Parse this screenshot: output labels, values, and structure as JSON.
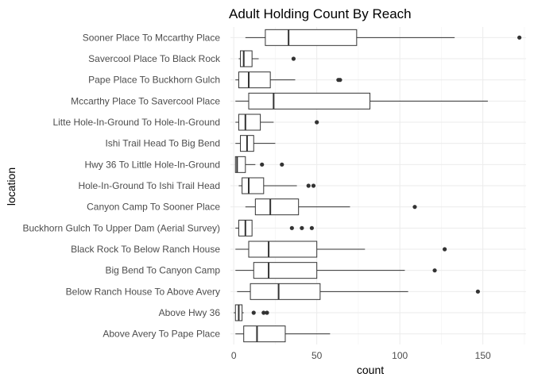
{
  "chart_data": {
    "type": "boxplot",
    "orientation": "horizontal",
    "title": "Adult Holding Count By Reach",
    "xlabel": "count",
    "ylabel": "location",
    "xlim": [
      -2,
      176
    ],
    "xticks": [
      0,
      50,
      100,
      150
    ],
    "grid": true,
    "series": [
      {
        "name": "Sooner Place To Mccarthy Place",
        "min": 7,
        "q1": 19,
        "median": 33,
        "q3": 74,
        "max": 133,
        "outliers": [
          172
        ]
      },
      {
        "name": "Savercool Place  To Black Rock",
        "min": 3,
        "q1": 4,
        "median": 6,
        "q3": 11,
        "max": 15,
        "outliers": [
          36
        ]
      },
      {
        "name": "Pape Place To Buckhorn Gulch",
        "min": 1,
        "q1": 3,
        "median": 9,
        "q3": 22,
        "max": 37,
        "outliers": [
          63,
          64
        ]
      },
      {
        "name": "Mccarthy Place To Savercool Place",
        "min": 1,
        "q1": 9,
        "median": 24,
        "q3": 82,
        "max": 153,
        "outliers": []
      },
      {
        "name": "Litte Hole-In-Ground To Hole-In-Ground",
        "min": 1,
        "q1": 3,
        "median": 7,
        "q3": 16,
        "max": 24,
        "outliers": [
          50
        ]
      },
      {
        "name": "Ishi Trail Head To Big Bend",
        "min": 1,
        "q1": 4,
        "median": 8,
        "q3": 12,
        "max": 25,
        "outliers": []
      },
      {
        "name": "Hwy 36 To Little Hole-In-Ground",
        "min": 1,
        "q1": 1,
        "median": 2,
        "q3": 7,
        "max": 13,
        "outliers": [
          17,
          29
        ]
      },
      {
        "name": "Hole-In-Ground To Ishi Trail Head",
        "min": 3,
        "q1": 5,
        "median": 9,
        "q3": 18,
        "max": 38,
        "outliers": [
          45,
          48
        ]
      },
      {
        "name": "Canyon Camp To Sooner Place",
        "min": 7,
        "q1": 13,
        "median": 22,
        "q3": 39,
        "max": 70,
        "outliers": [
          109
        ]
      },
      {
        "name": "Buckhorn Gulch To Upper Dam (Aerial Survey)",
        "min": 1,
        "q1": 3,
        "median": 7,
        "q3": 11,
        "max": 11,
        "outliers": [
          35,
          41,
          47
        ]
      },
      {
        "name": "Black Rock To Below Ranch House",
        "min": 1,
        "q1": 9,
        "median": 21,
        "q3": 50,
        "max": 79,
        "outliers": [
          127
        ]
      },
      {
        "name": "Big Bend To Canyon Camp",
        "min": 1,
        "q1": 12,
        "median": 21,
        "q3": 50,
        "max": 103,
        "outliers": [
          121
        ]
      },
      {
        "name": "Below Ranch House To Above Avery",
        "min": 2,
        "q1": 10,
        "median": 27,
        "q3": 52,
        "max": 105,
        "outliers": [
          147
        ]
      },
      {
        "name": "Above Hwy 36",
        "min": 0,
        "q1": 1,
        "median": 3,
        "q3": 5,
        "max": 6,
        "outliers": [
          12,
          18,
          20
        ]
      },
      {
        "name": "Above Avery To Pape Place",
        "min": 1,
        "q1": 6,
        "median": 14,
        "q3": 31,
        "max": 58,
        "outliers": []
      }
    ]
  }
}
